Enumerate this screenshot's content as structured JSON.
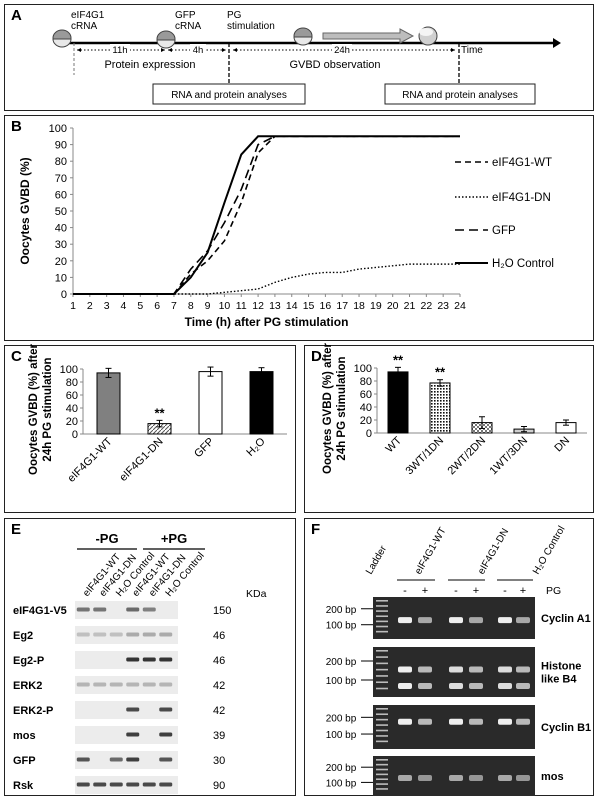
{
  "panels": {
    "a": "A",
    "b": "B",
    "c": "C",
    "d": "D",
    "e": "E",
    "f": "F"
  },
  "timeline": {
    "eif4g1_label": [
      "eIF4G1",
      "cRNA"
    ],
    "gfp_label": [
      "GFP",
      "cRNA"
    ],
    "pg_label": [
      "PG",
      "stimulation"
    ],
    "interval_11h": "11h",
    "interval_4h": "4h",
    "interval_24h": "24h",
    "time_label": "Time",
    "protein_expression": "Protein expression",
    "gvbd_observation": "GVBD observation",
    "box1": "RNA and protein analyses",
    "box2": "RNA and protein analyses"
  },
  "chart_data": [
    {
      "id": "B",
      "type": "line",
      "ylabel": "Oocytes GVBD (%)",
      "xlabel": "Time (h) after PG stimulation",
      "ylim": [
        0,
        100
      ],
      "yticks": [
        0,
        10,
        20,
        30,
        40,
        50,
        60,
        70,
        80,
        90,
        100
      ],
      "x": [
        1,
        2,
        3,
        4,
        5,
        6,
        7,
        8,
        9,
        10,
        11,
        12,
        13,
        14,
        15,
        16,
        17,
        18,
        19,
        20,
        21,
        22,
        23,
        24
      ],
      "grid": false,
      "legend_position": "right",
      "series": [
        {
          "name": "eIF4G1-WT",
          "dash": "6,4",
          "width": 1.6,
          "values": [
            0,
            0,
            0,
            0,
            0,
            0,
            0,
            12,
            20,
            32,
            55,
            85,
            95,
            95,
            95,
            95,
            95,
            95,
            95,
            95,
            95,
            95,
            95,
            95
          ]
        },
        {
          "name": "eIF4G1-DN",
          "dash": "1.5,2",
          "width": 1.4,
          "values": [
            0,
            0,
            0,
            0,
            0,
            0,
            0,
            0,
            0,
            1,
            2,
            3,
            7,
            10,
            12,
            13,
            13,
            15,
            16,
            17,
            18,
            18,
            18,
            18
          ]
        },
        {
          "name": "GFP",
          "dash": "9,5",
          "width": 1.6,
          "values": [
            0,
            0,
            0,
            0,
            0,
            0,
            0,
            15,
            26,
            43,
            63,
            90,
            95,
            95,
            95,
            95,
            95,
            95,
            95,
            95,
            95,
            95,
            95,
            95
          ]
        },
        {
          "name": "H₂O Control",
          "dash": "",
          "width": 2,
          "values": [
            0,
            0,
            0,
            0,
            0,
            0,
            0,
            10,
            25,
            55,
            84,
            95,
            95,
            95,
            95,
            95,
            95,
            95,
            95,
            95,
            95,
            95,
            95,
            95
          ]
        }
      ]
    },
    {
      "id": "C",
      "type": "bar",
      "ylabel": [
        "Oocytes GVBD (%) after",
        "24h PG stimulation"
      ],
      "ylim": [
        0,
        100
      ],
      "yticks": [
        0,
        20,
        40,
        60,
        80,
        100
      ],
      "categories": [
        "eIF4G1-WT",
        "eIF4G1-DN",
        "GFP",
        "H₂O"
      ],
      "values": [
        94,
        16,
        96,
        96
      ],
      "errors": [
        7,
        5,
        7,
        6
      ],
      "fills": [
        "#808080",
        "hatch",
        "#ffffff",
        "#000000"
      ],
      "annotations": [
        "",
        "**",
        "",
        ""
      ]
    },
    {
      "id": "D",
      "type": "bar",
      "ylabel": [
        "Oocytes GVBD (%) after",
        "24h PG stimulation"
      ],
      "ylim": [
        0,
        100
      ],
      "yticks": [
        0,
        20,
        40,
        60,
        80,
        100
      ],
      "categories": [
        "WT",
        "3WT/1DN",
        "2WT/2DN",
        "1WT/3DN",
        "DN"
      ],
      "values": [
        94,
        77,
        16,
        6,
        16
      ],
      "errors": [
        7,
        5,
        9,
        4,
        4
      ],
      "fills": [
        "#000000",
        "dots",
        "checker",
        "#cfcfcf",
        "#ffffff"
      ],
      "annotations": [
        "**",
        "**",
        "",
        "",
        ""
      ]
    }
  ],
  "western": {
    "pg_minus": "-PG",
    "pg_plus": "+PG",
    "lanes": [
      "eIF4G1-WT",
      "eIF4G1-DN",
      "H₂O Control",
      "eIF4G1-WT",
      "eIF4G1-DN",
      "H₂O Control"
    ],
    "kda": "KDa",
    "rows": [
      {
        "label": "eIF4G1-V5",
        "kda": "150"
      },
      {
        "label": "Eg2",
        "kda": "46"
      },
      {
        "label": "Eg2-P",
        "kda": "46"
      },
      {
        "label": "ERK2",
        "kda": "42"
      },
      {
        "label": "ERK2-P",
        "kda": "42"
      },
      {
        "label": "mos",
        "kda": "39"
      },
      {
        "label": "GFP",
        "kda": "30"
      },
      {
        "label": "Rsk",
        "kda": "90"
      }
    ]
  },
  "gel": {
    "ladder": "Ladder",
    "groups": [
      "eIF4G1-WT",
      "eIF4G1-DN",
      "H₂O Control"
    ],
    "pg": "PG",
    "signs": [
      "-",
      "+",
      "-",
      "+",
      "-",
      "+"
    ],
    "bp200": "200 bp",
    "bp100": "100 bp",
    "rows": [
      [
        "Cyclin A1"
      ],
      [
        "Histone",
        "like B4"
      ],
      [
        "Cyclin B1"
      ],
      [
        "mos"
      ]
    ]
  }
}
